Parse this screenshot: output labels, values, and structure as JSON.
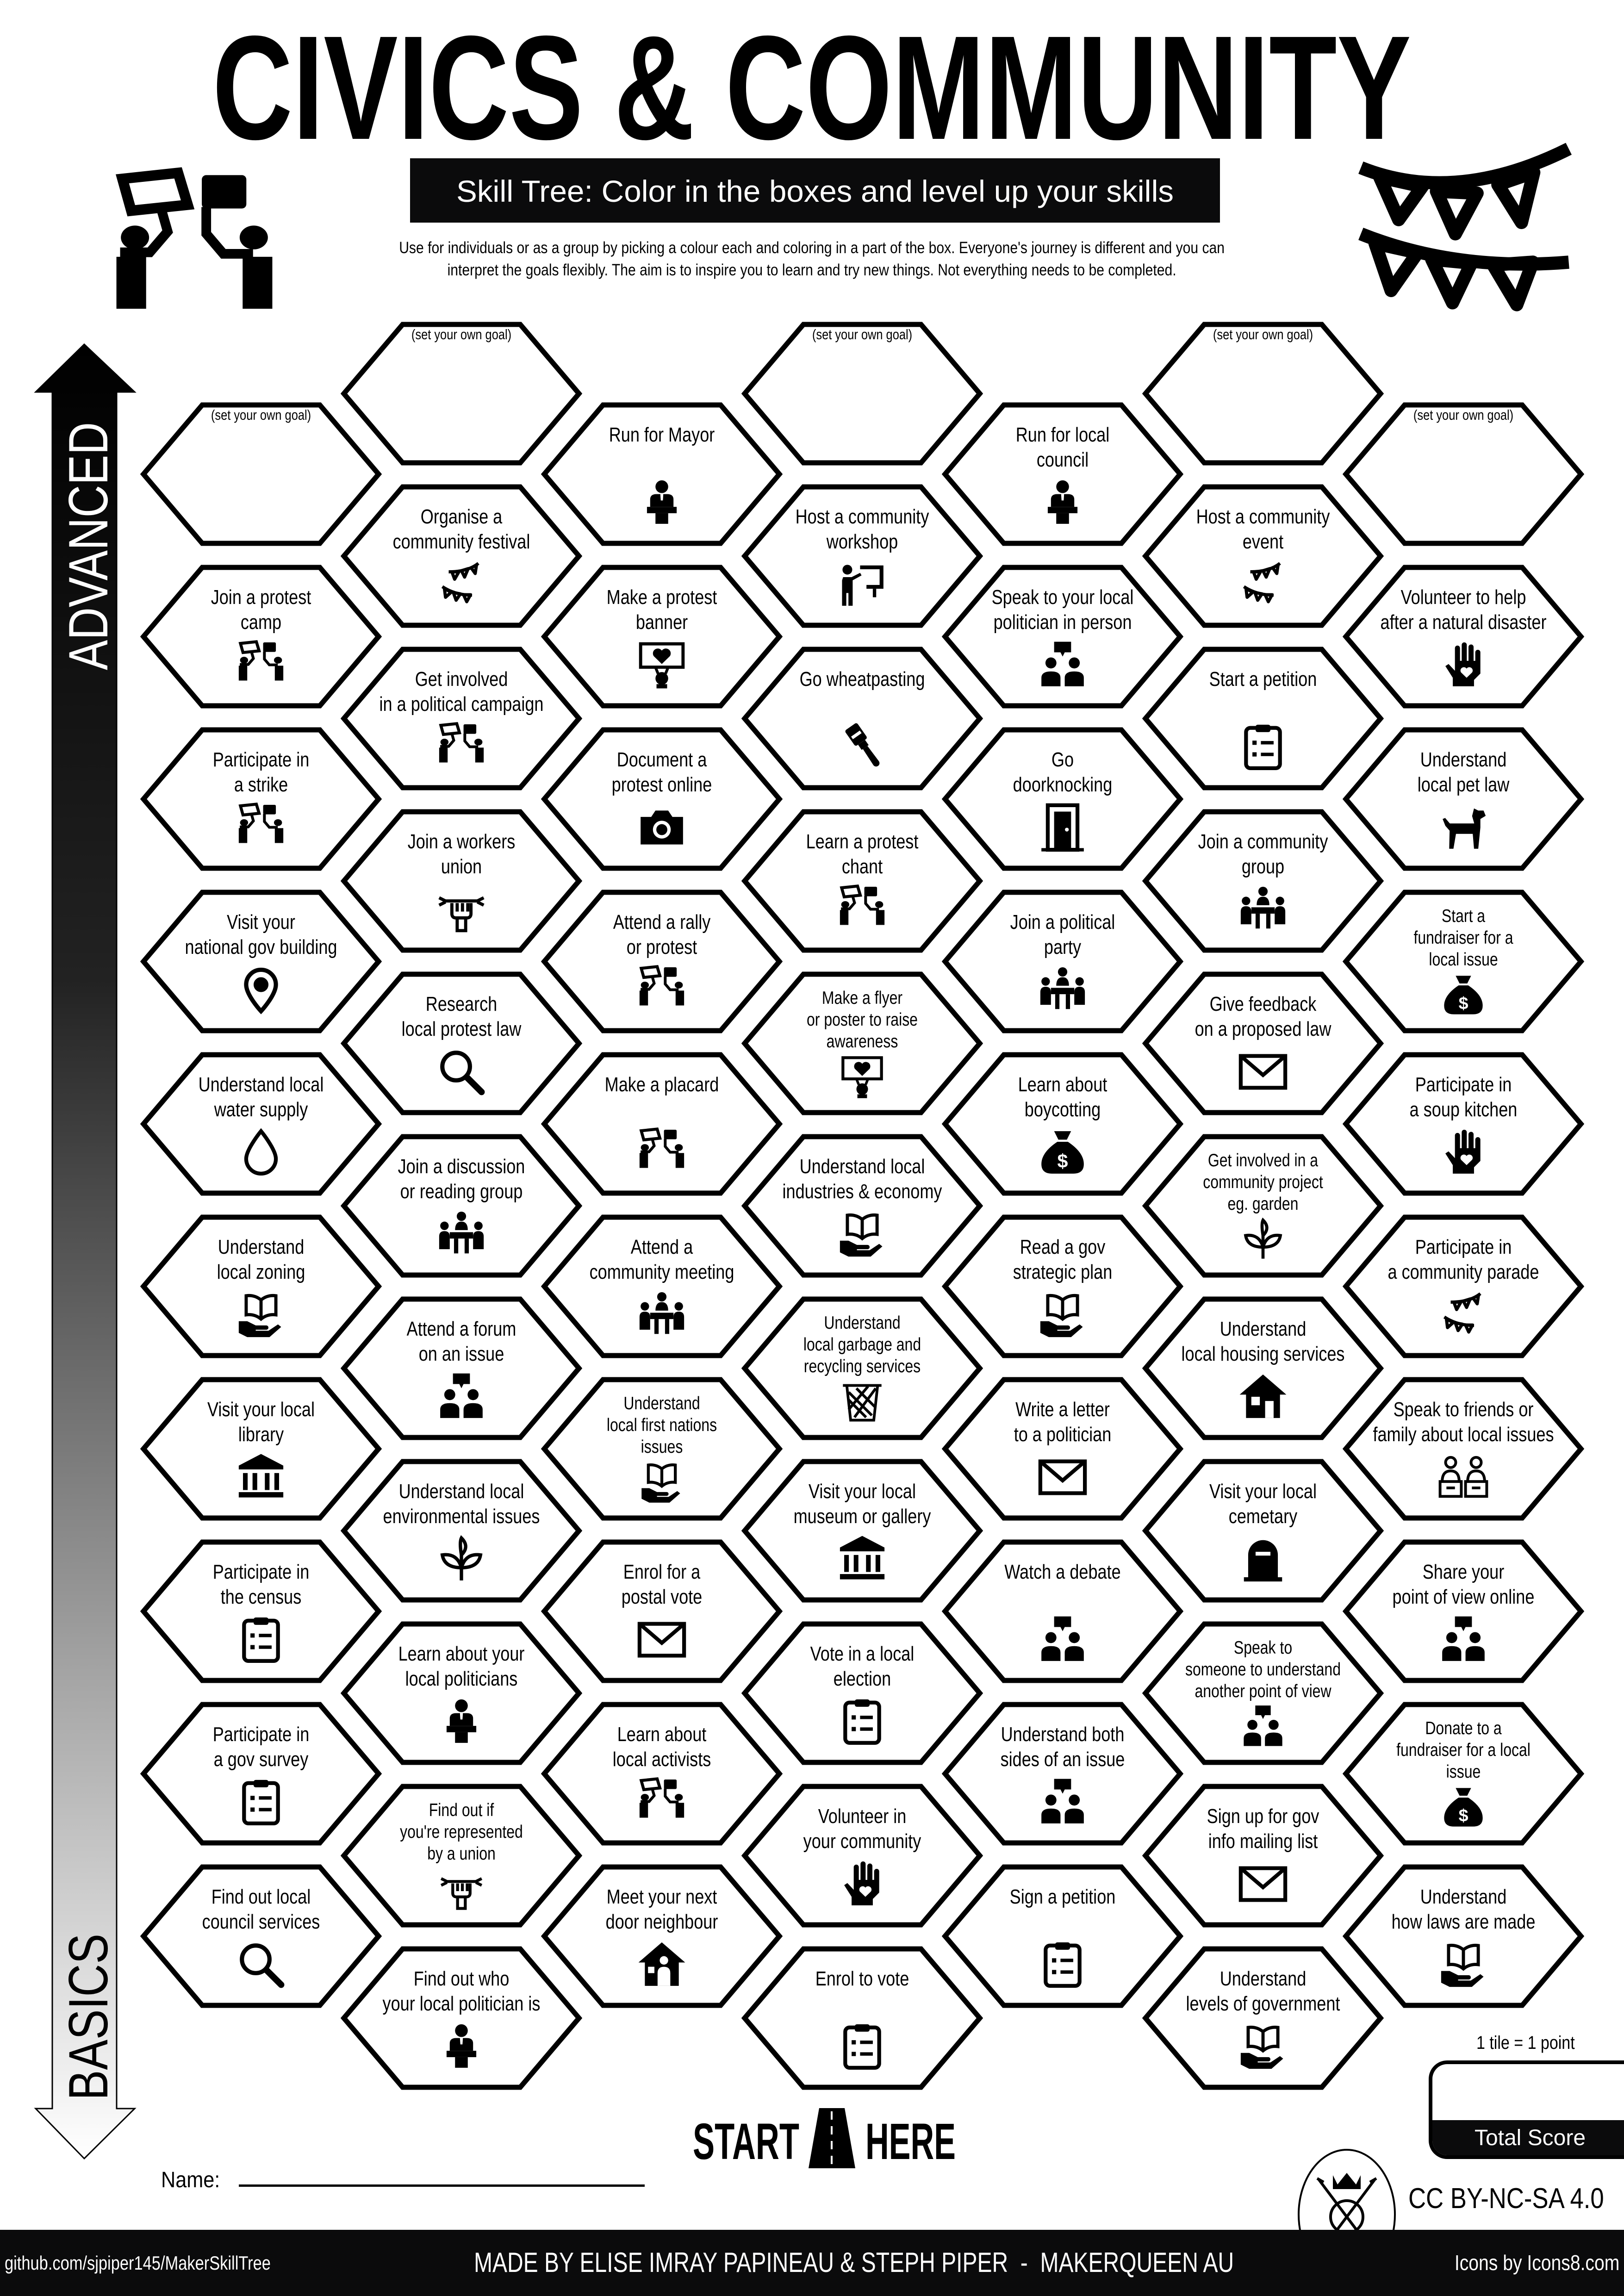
{
  "header": {
    "title": "CIVICS & COMMUNITY",
    "subtitle": "Skill Tree:  Color in the boxes and level up your skills",
    "intro": "Use for individuals or as a group by picking a colour each and coloring in a part of the box.  Everyone's journey is different and you can\ninterpret the goals flexibly.  The aim is to inspire you to learn and try new things. Not everything needs to be completed.",
    "left_icon": "protest-placards-icon",
    "right_icon": "bunting-icon"
  },
  "progress_arrow": {
    "top_label": "ADVANCED",
    "bottom_label": "BASICS"
  },
  "hex_grid": {
    "columns": [
      {
        "tiles": [
          {
            "label": "(set your own goal)",
            "icon": null,
            "goal": true
          },
          {
            "label": "Join a protest\ncamp",
            "icon": "placards"
          },
          {
            "label": "Participate in\na strike",
            "icon": "placards"
          },
          {
            "label": "Visit your\nnational gov building",
            "icon": "pin"
          },
          {
            "label": "Understand local\nwater supply",
            "icon": "drop"
          },
          {
            "label": "Understand\nlocal zoning",
            "icon": "hand-book"
          },
          {
            "label": "Visit your local\nlibrary",
            "icon": "museum"
          },
          {
            "label": "Participate in\nthe census",
            "icon": "clipboard"
          },
          {
            "label": "Participate in\na gov survey",
            "icon": "clipboard"
          },
          {
            "label": "Find out local\ncouncil services",
            "icon": "magnifier"
          }
        ]
      },
      {
        "tiles": [
          {
            "label": "(set your own goal)",
            "icon": null,
            "goal": true
          },
          {
            "label": "Organise a\ncommunity festival",
            "icon": "bunting"
          },
          {
            "label": "Get involved\nin a political campaign",
            "icon": "placards"
          },
          {
            "label": "Join a workers\nunion",
            "icon": "union"
          },
          {
            "label": "Research\nlocal protest law",
            "icon": "magnifier"
          },
          {
            "label": "Join a discussion\nor reading group",
            "icon": "meeting"
          },
          {
            "label": "Attend a forum\non an issue",
            "icon": "people-talking"
          },
          {
            "label": "Understand local\nenvironmental issues",
            "icon": "sprout"
          },
          {
            "label": "Learn about your\nlocal politicians",
            "icon": "podium"
          },
          {
            "label": "Find out if\nyou're represented\nby a union",
            "icon": "union"
          },
          {
            "label": "Find out who\nyour local politician is",
            "icon": "podium"
          }
        ]
      },
      {
        "tiles": [
          {
            "label": "Run for Mayor",
            "icon": "podium"
          },
          {
            "label": "Make a protest\nbanner",
            "icon": "banner-heart"
          },
          {
            "label": "Document a\nprotest online",
            "icon": "camera"
          },
          {
            "label": "Attend a rally\nor protest",
            "icon": "placards"
          },
          {
            "label": "Make a placard",
            "icon": "placards"
          },
          {
            "label": "Attend a\ncommunity meeting",
            "icon": "meeting"
          },
          {
            "label": "Understand\nlocal first nations\nissues",
            "icon": "hand-book"
          },
          {
            "label": "Enrol for a\npostal vote",
            "icon": "envelope"
          },
          {
            "label": "Learn about\nlocal activists",
            "icon": "placards"
          },
          {
            "label": "Meet your next\ndoor neighbour",
            "icon": "house-person"
          }
        ]
      },
      {
        "tiles": [
          {
            "label": "(set your own goal)",
            "icon": null,
            "goal": true
          },
          {
            "label": "Host a community\nworkshop",
            "icon": "presenter"
          },
          {
            "label": "Go wheatpasting",
            "icon": "paintbrush"
          },
          {
            "label": "Learn a protest\nchant",
            "icon": "placards"
          },
          {
            "label": "Make a flyer\nor poster to raise\nawareness",
            "icon": "banner-heart"
          },
          {
            "label": "Understand local\nindustries & economy",
            "icon": "hand-book"
          },
          {
            "label": "Understand\nlocal garbage and\nrecycling services",
            "icon": "trash"
          },
          {
            "label": "Visit your local\nmuseum or gallery",
            "icon": "museum"
          },
          {
            "label": "Vote in a local\nelection",
            "icon": "clipboard"
          },
          {
            "label": "Volunteer in\nyour community",
            "icon": "hand-heart"
          },
          {
            "label": "Enrol to vote",
            "icon": "clipboard"
          }
        ]
      },
      {
        "tiles": [
          {
            "label": "Run for local\ncouncil",
            "icon": "podium"
          },
          {
            "label": "Speak to your local\npolitician in person",
            "icon": "people-talking"
          },
          {
            "label": "Go\ndoorknocking",
            "icon": "door"
          },
          {
            "label": "Join a political\nparty",
            "icon": "meeting"
          },
          {
            "label": "Learn about\nboycotting",
            "icon": "moneybag"
          },
          {
            "label": "Read a gov\nstrategic plan",
            "icon": "hand-book"
          },
          {
            "label": "Write a letter\nto a politician",
            "icon": "envelope"
          },
          {
            "label": "Watch a debate",
            "icon": "people-talking"
          },
          {
            "label": "Understand both\nsides of an issue",
            "icon": "people-talking"
          },
          {
            "label": "Sign a petition",
            "icon": "clipboard"
          }
        ]
      },
      {
        "tiles": [
          {
            "label": "(set your own goal)",
            "icon": null,
            "goal": true
          },
          {
            "label": "Host a community\nevent",
            "icon": "bunting"
          },
          {
            "label": "Start a petition",
            "icon": "clipboard"
          },
          {
            "label": "Join a community\ngroup",
            "icon": "meeting"
          },
          {
            "label": "Give feedback\non a proposed law",
            "icon": "envelope"
          },
          {
            "label": "Get involved in a\ncommunity project\neg. garden",
            "icon": "sprout"
          },
          {
            "label": "Understand\nlocal housing services",
            "icon": "house"
          },
          {
            "label": "Visit your local\ncemetary",
            "icon": "grave"
          },
          {
            "label": "Speak to\nsomeone to understand\nanother point of view",
            "icon": "people-talking"
          },
          {
            "label": "Sign up for gov\ninfo mailing list",
            "icon": "envelope"
          },
          {
            "label": "Understand\nlevels of government",
            "icon": "hand-book"
          }
        ]
      },
      {
        "tiles": [
          {
            "label": "(set your own goal)",
            "icon": null,
            "goal": true
          },
          {
            "label": "Volunteer to help\nafter a natural disaster",
            "icon": "hand-heart"
          },
          {
            "label": "Understand\nlocal pet law",
            "icon": "dog"
          },
          {
            "label": "Start a\nfundraiser for a\nlocal issue",
            "icon": "moneybag"
          },
          {
            "label": "Participate in\na soup kitchen",
            "icon": "hand-heart"
          },
          {
            "label": "Participate in\na community parade",
            "icon": "bunting"
          },
          {
            "label": "Speak to friends or\nfamily about local issues",
            "icon": "debate"
          },
          {
            "label": "Share your\npoint of view online",
            "icon": "people-talking"
          },
          {
            "label": "Donate to a\nfundraiser for a local\nissue",
            "icon": "moneybag"
          },
          {
            "label": "Understand\nhow laws are made",
            "icon": "hand-book"
          }
        ]
      }
    ]
  },
  "start": {
    "left": "START",
    "right": "HERE",
    "icon": "road-icon"
  },
  "score": {
    "rule": "1 tile = 1 point",
    "label": "Total Score"
  },
  "name_field": {
    "label": "Name:",
    "value": ""
  },
  "license": "CC BY-NC-SA 4.0",
  "footer": {
    "repo": "github.com/sjpiper145/MakerSkillTree",
    "credits": "MADE BY ELISE IMRAY PAPINEAU & STEPH PIPER  -  MAKERQUEEN AU",
    "icons_credit": "Icons by Icons8.com"
  }
}
